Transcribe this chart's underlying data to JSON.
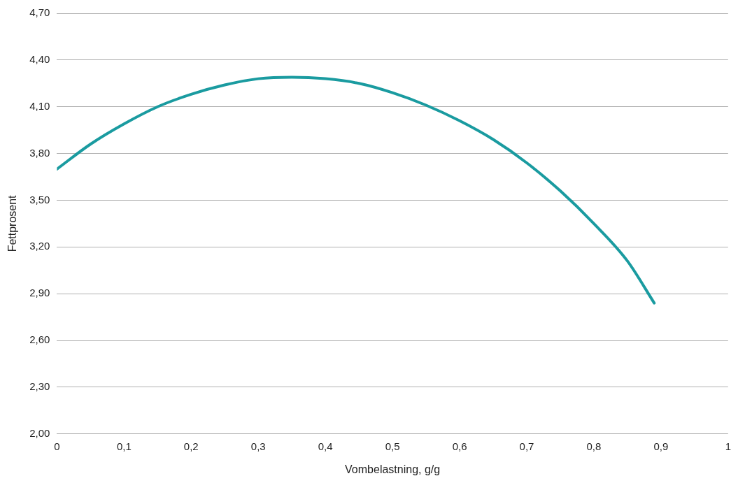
{
  "chart_data": {
    "type": "line",
    "xlabel": "Vombelastning, g/g",
    "ylabel": "Fettprosent",
    "x": [
      0,
      0.05,
      0.1,
      0.15,
      0.2,
      0.25,
      0.3,
      0.35,
      0.4,
      0.45,
      0.5,
      0.55,
      0.6,
      0.65,
      0.7,
      0.75,
      0.8,
      0.85,
      0.89
    ],
    "series": [
      {
        "color": "#1a9ba0",
        "values": [
          3.7,
          3.86,
          3.99,
          4.1,
          4.18,
          4.24,
          4.28,
          4.29,
          4.28,
          4.25,
          4.19,
          4.11,
          4.01,
          3.89,
          3.74,
          3.56,
          3.35,
          3.11,
          2.84
        ]
      }
    ],
    "xlim": [
      0,
      1
    ],
    "xticks": [
      0,
      {
        "value": 0.1,
        "label": "0,1"
      },
      {
        "value": 0.2,
        "label": "0,2"
      },
      {
        "value": 0.3,
        "label": "0,3"
      },
      {
        "value": 0.4,
        "label": "0,4"
      },
      {
        "value": 0.5,
        "label": "0,5"
      },
      {
        "value": 0.6,
        "label": "0,6"
      },
      {
        "value": 0.7,
        "label": "0,7"
      },
      {
        "value": 0.8,
        "label": "0,8"
      },
      {
        "value": 0.9,
        "label": "0,9"
      },
      1
    ],
    "ylim": [
      2,
      4.7
    ],
    "yticks": [
      {
        "value": 2,
        "label": "2,00"
      },
      {
        "value": 2.3,
        "label": "2,30"
      },
      {
        "value": 2.6,
        "label": "2,60"
      },
      {
        "value": 2.9,
        "label": "2,90"
      },
      {
        "value": 3.2,
        "label": "3,20"
      },
      {
        "value": 3.5,
        "label": "3,50"
      },
      {
        "value": 3.8,
        "label": "3,80"
      },
      {
        "value": 4.1,
        "label": "4,10"
      },
      {
        "value": 4.4,
        "label": "4,40"
      },
      {
        "value": 4.7,
        "label": "4,70"
      }
    ],
    "grid": "y",
    "marker": "none",
    "line_style": "solid"
  }
}
